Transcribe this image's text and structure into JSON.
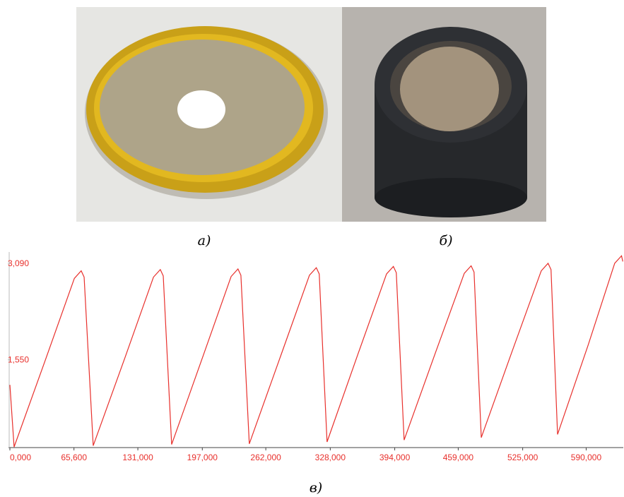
{
  "captions": [
    "а)",
    "б)",
    "в)"
  ],
  "chart_data": {
    "type": "line",
    "x": [
      0,
      4.3,
      36.6,
      66.0,
      73.0,
      76.0,
      85.3,
      117.7,
      147.0,
      154.0,
      157.0,
      165.6,
      197.5,
      226.5,
      233.5,
      236.5,
      245.1,
      277.4,
      306.7,
      313.7,
      316.7,
      324.7,
      356.3,
      385.6,
      392.6,
      395.6,
      403.6,
      435.6,
      465.2,
      472.2,
      475.2,
      482.6,
      514.5,
      544.0,
      551.0,
      554.0,
      560.7,
      591.9,
      619.2,
      626.2,
      627.5
    ],
    "series": [
      {
        "color": "#e8302c",
        "values": [
          1.15,
          0.16,
          1.56,
          2.85,
          2.97,
          2.87,
          0.18,
          1.58,
          2.87,
          2.99,
          2.89,
          0.2,
          1.6,
          2.88,
          3.0,
          2.9,
          0.21,
          1.62,
          2.9,
          3.02,
          2.92,
          0.24,
          1.64,
          2.92,
          3.04,
          2.94,
          0.27,
          1.66,
          2.93,
          3.05,
          2.95,
          0.31,
          1.7,
          2.97,
          3.09,
          2.99,
          0.36,
          1.78,
          3.09,
          3.21,
          3.12
        ]
      }
    ],
    "xlim": [
      0,
      628
    ],
    "ylim": [
      0.15,
      3.27
    ],
    "xticks": [
      {
        "value": 0,
        "label": "0,000"
      },
      {
        "value": 65.6,
        "label": "65,600"
      },
      {
        "value": 131,
        "label": "131,000"
      },
      {
        "value": 197,
        "label": "197,000"
      },
      {
        "value": 262,
        "label": "262,000"
      },
      {
        "value": 328,
        "label": "328,000"
      },
      {
        "value": 394,
        "label": "394,000"
      },
      {
        "value": 459,
        "label": "459,000"
      },
      {
        "value": 525,
        "label": "525,000"
      },
      {
        "value": 590,
        "label": "590,000"
      }
    ],
    "yticks": [
      {
        "value": 3.09,
        "label": "3,090"
      },
      {
        "value": 1.55,
        "label": "1,550"
      }
    ],
    "tick_color": "#e8302c"
  }
}
